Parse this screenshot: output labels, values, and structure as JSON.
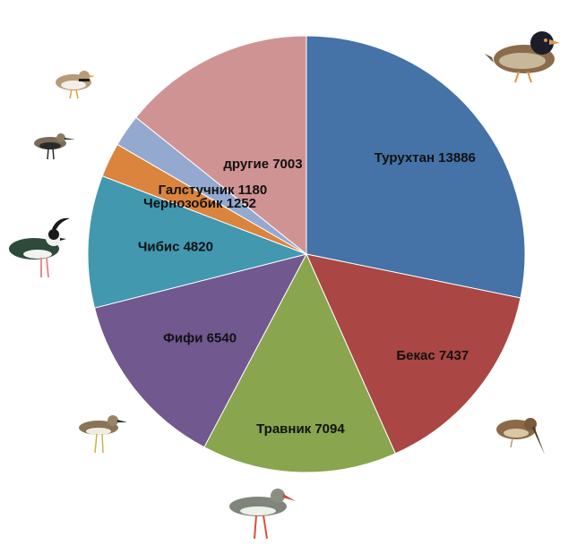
{
  "chart_data": {
    "type": "pie",
    "title": "",
    "slices": [
      {
        "label": "Турухтан",
        "value": 13886,
        "text": "Турухтан 13886",
        "color": "#4572a7"
      },
      {
        "label": "Бекас",
        "value": 7437,
        "text": "Бекас 7437",
        "color": "#aa4643"
      },
      {
        "label": "Травник",
        "value": 7094,
        "text": "Травник 7094",
        "color": "#89a54e"
      },
      {
        "label": "Фифи",
        "value": 6540,
        "text": "Фифи 6540",
        "color": "#71588f"
      },
      {
        "label": "Чибис",
        "value": 4820,
        "text": "Чибис 4820",
        "color": "#4198af"
      },
      {
        "label": "Чернозобик",
        "value": 1252,
        "text": "Чернозобик 1252",
        "color": "#db843d"
      },
      {
        "label": "Галстучник",
        "value": 1180,
        "text": "Галстучник 1180",
        "color": "#93a9cf"
      },
      {
        "label": "другие",
        "value": 7003,
        "text": "другие 7003",
        "color": "#d09393"
      }
    ],
    "start_angle_deg": 0,
    "direction": "clockwise",
    "legend": "none",
    "illustrations": [
      "ruff-icon",
      "snipe-icon",
      "redshank-icon",
      "wood-sandpiper-icon",
      "lapwing-icon",
      "dunlin-icon",
      "ringed-plover-icon"
    ]
  }
}
